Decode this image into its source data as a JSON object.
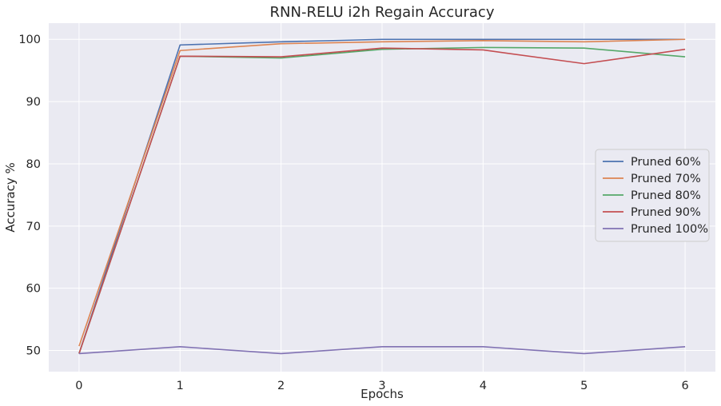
{
  "chart_data": {
    "type": "line",
    "title": "RNN-RELU i2h Regain Accuracy",
    "xlabel": "Epochs",
    "ylabel": "Accuracy %",
    "x": [
      0,
      1,
      2,
      3,
      4,
      5,
      6
    ],
    "xticks": [
      "0",
      "1",
      "2",
      "3",
      "4",
      "5",
      "6"
    ],
    "yticks": [
      "50",
      "60",
      "70",
      "80",
      "90",
      "100"
    ],
    "xlim": [
      -0.3,
      6.3
    ],
    "ylim": [
      46.6,
      102.6
    ],
    "grid": true,
    "legend_position": "center-right",
    "series": [
      {
        "name": "Pruned 60%",
        "color": "#4c72b0",
        "values": [
          49.5,
          99.1,
          99.6,
          100.0,
          100.0,
          100.0,
          100.0
        ]
      },
      {
        "name": "Pruned 70%",
        "color": "#dd8452",
        "values": [
          50.7,
          98.2,
          99.3,
          99.6,
          99.8,
          99.6,
          100.0
        ]
      },
      {
        "name": "Pruned 80%",
        "color": "#55a868",
        "values": [
          49.5,
          97.3,
          97.0,
          98.4,
          98.7,
          98.6,
          97.2
        ]
      },
      {
        "name": "Pruned 90%",
        "color": "#c44e52",
        "values": [
          49.5,
          97.3,
          97.2,
          98.6,
          98.3,
          96.1,
          98.4
        ]
      },
      {
        "name": "Pruned 100%",
        "color": "#8172b3",
        "values": [
          49.5,
          50.6,
          49.5,
          50.6,
          50.6,
          49.5,
          50.6
        ]
      }
    ]
  }
}
